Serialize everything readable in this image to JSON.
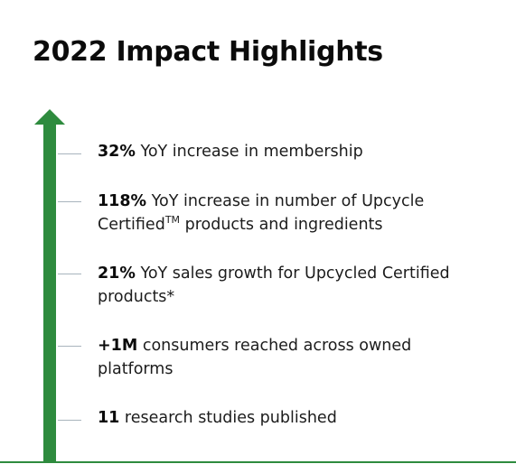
{
  "title": "2022 Impact Highlights",
  "colors": {
    "accent_green": "#2e8b3e",
    "tick_gray": "#a8b4bd"
  },
  "icons": [
    "up-arrow-icon"
  ],
  "highlights": [
    {
      "stat": "32%",
      "line1": " YoY increase in membership"
    },
    {
      "stat": "118%",
      "line1": "  YoY increase in number of Upcycle",
      "line2_pre": "Certified",
      "line2_sup": "TM",
      "line2_post": " products and ingredients"
    },
    {
      "stat": "21%",
      "line1": " YoY sales growth for Upcycled Certified",
      "line2": "products*"
    },
    {
      "stat": "+1M",
      "line1": " consumers reached across owned",
      "line2": "platforms"
    },
    {
      "stat": "11",
      "line1": " research studies published"
    }
  ]
}
